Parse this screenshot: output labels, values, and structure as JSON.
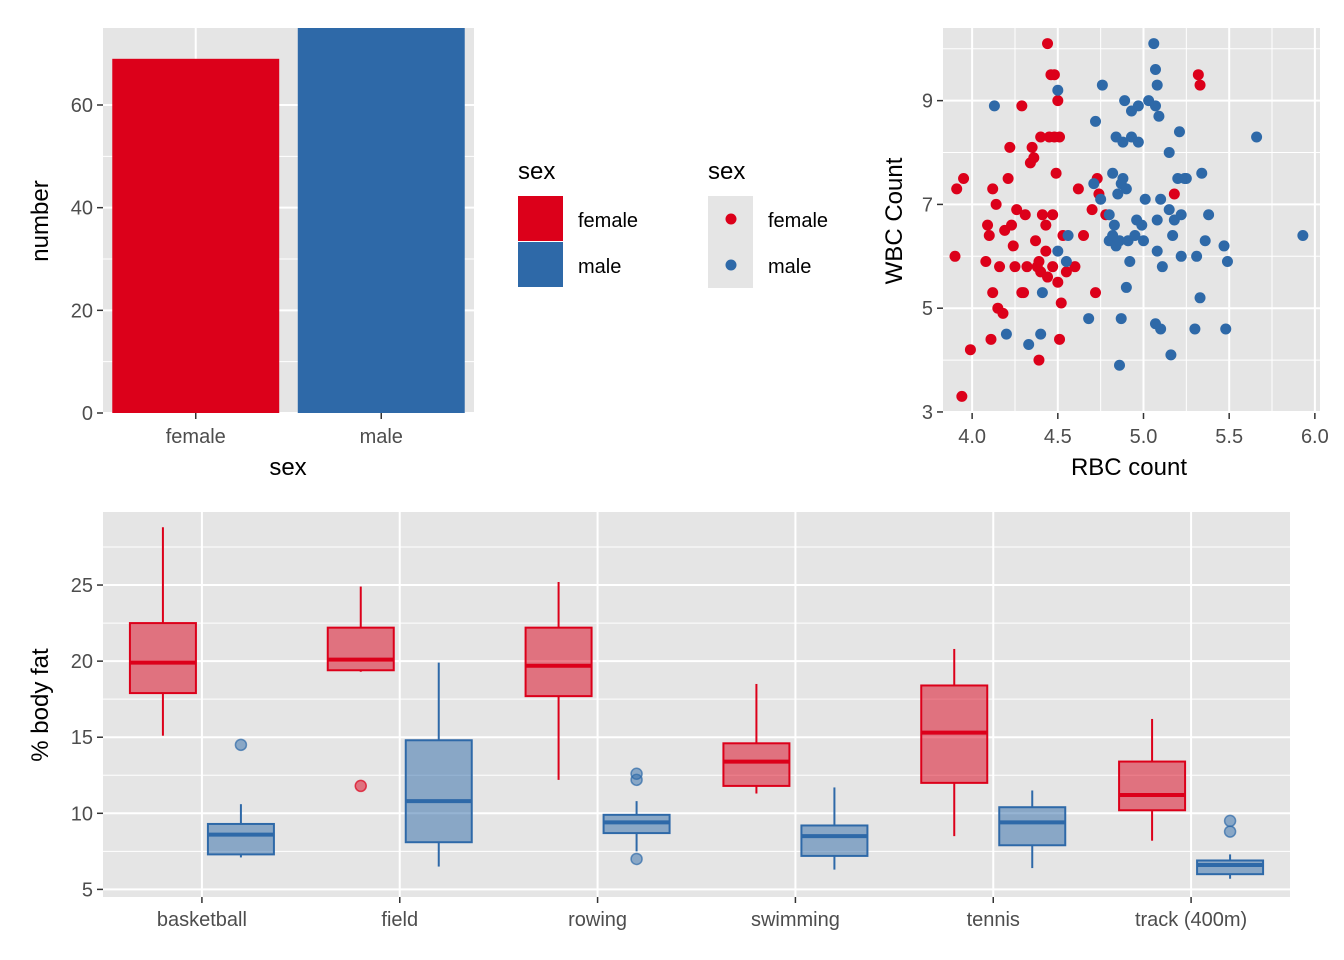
{
  "colors": {
    "female": "#DC001A",
    "male": "#2E69A8",
    "panel": "#E5E5E5",
    "grid": "#FFFFFF"
  },
  "chart_data": [
    {
      "id": "bar",
      "type": "bar",
      "categories": [
        "female",
        "male"
      ],
      "values": [
        69,
        75
      ],
      "xlabel": "sex",
      "ylabel": "number",
      "ylim": [
        0,
        75
      ],
      "yticks": [
        0,
        20,
        40,
        60
      ],
      "grid": true,
      "legend": {
        "title": "sex",
        "position": "right",
        "entries": [
          "female",
          "male"
        ]
      }
    },
    {
      "id": "scatter",
      "type": "scatter",
      "xlabel": "RBC count",
      "ylabel": "WBC Count",
      "xlim": [
        3.83,
        6.03
      ],
      "ylim": [
        2.98,
        10.4
      ],
      "xticks": [
        "4.0",
        "4.5",
        "5.0",
        "5.5",
        "6.0"
      ],
      "yticks": [
        "3",
        "5",
        "7",
        "9"
      ],
      "grid": true,
      "legend": {
        "title": "sex",
        "position": "right",
        "entries": [
          "female",
          "male"
        ]
      },
      "series": [
        {
          "name": "female",
          "points": [
            [
              3.9,
              6
            ],
            [
              3.91,
              7.3
            ],
            [
              3.94,
              3.3
            ],
            [
              3.95,
              7.5
            ],
            [
              3.99,
              4.2
            ],
            [
              4.08,
              5.9
            ],
            [
              4.09,
              6.6
            ],
            [
              4.1,
              6.4
            ],
            [
              4.11,
              4.4
            ],
            [
              4.12,
              5.3
            ],
            [
              4.12,
              7.3
            ],
            [
              4.14,
              7
            ],
            [
              4.15,
              5
            ],
            [
              4.16,
              5.8
            ],
            [
              4.18,
              4.9
            ],
            [
              4.19,
              6.5
            ],
            [
              4.21,
              7.5
            ],
            [
              4.22,
              8.1
            ],
            [
              4.23,
              6.6
            ],
            [
              4.24,
              6.2
            ],
            [
              4.25,
              5.8
            ],
            [
              4.26,
              6.9
            ],
            [
              4.29,
              8.9
            ],
            [
              4.29,
              5.3
            ],
            [
              4.3,
              5.3
            ],
            [
              4.31,
              6.8
            ],
            [
              4.32,
              5.8
            ],
            [
              4.34,
              7.8
            ],
            [
              4.35,
              8.1
            ],
            [
              4.36,
              7.9
            ],
            [
              4.37,
              6.3
            ],
            [
              4.38,
              5.8
            ],
            [
              4.39,
              4
            ],
            [
              4.39,
              5.9
            ],
            [
              4.4,
              5.7
            ],
            [
              4.4,
              8.3
            ],
            [
              4.41,
              6.8
            ],
            [
              4.43,
              6.1
            ],
            [
              4.43,
              6.6
            ],
            [
              4.44,
              5.6
            ],
            [
              4.44,
              10.1
            ],
            [
              4.45,
              8.3
            ],
            [
              4.46,
              9.5
            ],
            [
              4.47,
              5.8
            ],
            [
              4.47,
              6.8
            ],
            [
              4.48,
              9.5
            ],
            [
              4.48,
              8.3
            ],
            [
              4.49,
              7.6
            ],
            [
              4.5,
              5.5
            ],
            [
              4.5,
              9
            ],
            [
              4.51,
              4.4
            ],
            [
              4.51,
              8.3
            ],
            [
              4.52,
              5.1
            ],
            [
              4.53,
              6.4
            ],
            [
              4.55,
              5.7
            ],
            [
              4.6,
              5.8
            ],
            [
              4.62,
              7.3
            ],
            [
              4.65,
              6.4
            ],
            [
              4.7,
              6.9
            ],
            [
              4.72,
              5.3
            ],
            [
              4.73,
              7.5
            ],
            [
              4.74,
              7.2
            ],
            [
              4.78,
              6.8
            ],
            [
              5.18,
              7.2
            ],
            [
              5.32,
              9.5
            ],
            [
              5.33,
              9.3
            ]
          ]
        },
        {
          "name": "male",
          "points": [
            [
              4.13,
              8.9
            ],
            [
              4.2,
              4.5
            ],
            [
              4.33,
              4.3
            ],
            [
              4.4,
              4.5
            ],
            [
              4.41,
              5.3
            ],
            [
              4.5,
              6.1
            ],
            [
              4.5,
              9.2
            ],
            [
              4.55,
              5.9
            ],
            [
              4.56,
              6.4
            ],
            [
              4.68,
              4.8
            ],
            [
              4.71,
              7.4
            ],
            [
              4.72,
              8.6
            ],
            [
              4.75,
              7.1
            ],
            [
              4.76,
              9.3
            ],
            [
              4.8,
              6.3
            ],
            [
              4.8,
              6.8
            ],
            [
              4.82,
              7.6
            ],
            [
              4.82,
              6.4
            ],
            [
              4.83,
              6.6
            ],
            [
              4.84,
              8.3
            ],
            [
              4.84,
              6.2
            ],
            [
              4.85,
              7.2
            ],
            [
              4.86,
              6.3
            ],
            [
              4.86,
              3.9
            ],
            [
              4.87,
              4.8
            ],
            [
              4.87,
              7.4
            ],
            [
              4.88,
              8.2
            ],
            [
              4.88,
              7.5
            ],
            [
              4.89,
              9
            ],
            [
              4.9,
              7.3
            ],
            [
              4.9,
              5.4
            ],
            [
              4.91,
              6.3
            ],
            [
              4.92,
              5.9
            ],
            [
              4.93,
              8.3
            ],
            [
              4.93,
              8.8
            ],
            [
              4.95,
              6.4
            ],
            [
              4.96,
              6.7
            ],
            [
              4.97,
              8.9
            ],
            [
              4.97,
              8.2
            ],
            [
              4.99,
              6.6
            ],
            [
              5,
              6.3
            ],
            [
              5.01,
              7.1
            ],
            [
              5.03,
              9
            ],
            [
              5.06,
              10.1
            ],
            [
              5.07,
              9.6
            ],
            [
              5.07,
              8.9
            ],
            [
              5.07,
              4.7
            ],
            [
              5.08,
              9.3
            ],
            [
              5.08,
              6.1
            ],
            [
              5.08,
              6.7
            ],
            [
              5.09,
              8.7
            ],
            [
              5.1,
              7.1
            ],
            [
              5.1,
              4.6
            ],
            [
              5.11,
              5.8
            ],
            [
              5.15,
              6.9
            ],
            [
              5.15,
              8
            ],
            [
              5.16,
              4.1
            ],
            [
              5.17,
              6.4
            ],
            [
              5.18,
              6.7
            ],
            [
              5.2,
              7.5
            ],
            [
              5.21,
              8.4
            ],
            [
              5.22,
              6
            ],
            [
              5.22,
              6.8
            ],
            [
              5.24,
              7.5
            ],
            [
              5.25,
              7.5
            ],
            [
              5.3,
              4.6
            ],
            [
              5.31,
              6
            ],
            [
              5.33,
              5.2
            ],
            [
              5.34,
              7.6
            ],
            [
              5.36,
              6.3
            ],
            [
              5.38,
              6.8
            ],
            [
              5.47,
              6.2
            ],
            [
              5.48,
              4.6
            ],
            [
              5.49,
              5.9
            ],
            [
              5.66,
              8.3
            ],
            [
              5.93,
              6.4
            ]
          ]
        }
      ]
    },
    {
      "id": "box",
      "type": "box",
      "categories": [
        "basketball",
        "field",
        "rowing",
        "swimming",
        "tennis",
        "track (400m)"
      ],
      "ylabel": "% body fat",
      "ylim": [
        4.5,
        29.8
      ],
      "yticks": [
        5,
        10,
        15,
        20,
        25
      ],
      "grid": true,
      "series": [
        {
          "name": "female",
          "boxes": [
            {
              "min": 15.1,
              "q1": 17.9,
              "median": 19.9,
              "q3": 22.5,
              "max": 28.8,
              "outliers": []
            },
            {
              "min": 19.3,
              "q1": 19.4,
              "median": 20.1,
              "q3": 22.2,
              "max": 24.9,
              "outliers": [
                11.8
              ]
            },
            {
              "min": 12.2,
              "q1": 17.7,
              "median": 19.7,
              "q3": 22.2,
              "max": 25.2,
              "outliers": []
            },
            {
              "min": 11.3,
              "q1": 11.8,
              "median": 13.4,
              "q3": 14.6,
              "max": 18.5,
              "outliers": []
            },
            {
              "min": 8.5,
              "q1": 12.0,
              "median": 15.3,
              "q3": 18.4,
              "max": 20.8,
              "outliers": []
            },
            {
              "min": 8.2,
              "q1": 10.2,
              "median": 11.2,
              "q3": 13.4,
              "max": 16.2,
              "outliers": []
            }
          ]
        },
        {
          "name": "male",
          "boxes": [
            {
              "min": 7.1,
              "q1": 7.3,
              "median": 8.6,
              "q3": 9.3,
              "max": 10.6,
              "outliers": [
                14.5
              ]
            },
            {
              "min": 6.5,
              "q1": 8.1,
              "median": 10.8,
              "q3": 14.8,
              "max": 19.9,
              "outliers": []
            },
            {
              "min": 7.5,
              "q1": 8.7,
              "median": 9.4,
              "q3": 9.9,
              "max": 10.8,
              "outliers": [
                7.0,
                12.2,
                12.6
              ]
            },
            {
              "min": 6.3,
              "q1": 7.2,
              "median": 8.5,
              "q3": 9.2,
              "max": 11.7,
              "outliers": []
            },
            {
              "min": 6.4,
              "q1": 7.9,
              "median": 9.4,
              "q3": 10.4,
              "max": 11.5,
              "outliers": []
            },
            {
              "min": 5.7,
              "q1": 6.0,
              "median": 6.6,
              "q3": 6.9,
              "max": 7.3,
              "outliers": [
                8.8,
                9.5
              ]
            }
          ]
        }
      ]
    }
  ]
}
